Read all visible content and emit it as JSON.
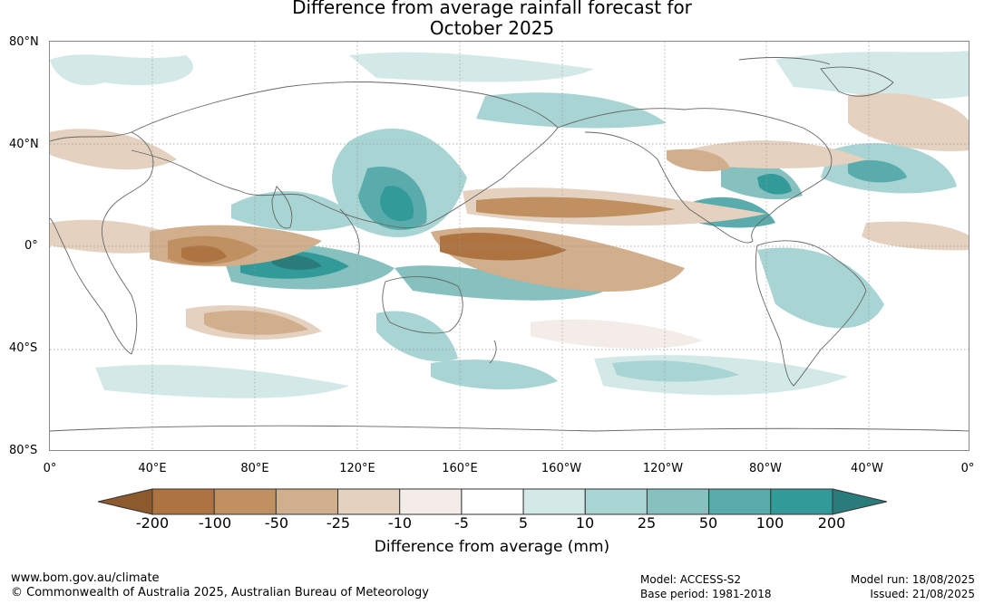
{
  "title": {
    "line1": "Difference from average rainfall forecast for",
    "line2": "October 2025"
  },
  "map": {
    "lat_labels": [
      "80°N",
      "40°N",
      "0°",
      "40°S",
      "80°S"
    ],
    "lon_labels": [
      "0°",
      "40°E",
      "80°E",
      "120°E",
      "160°E",
      "160°W",
      "120°W",
      "80°W",
      "40°W",
      "0°"
    ],
    "grid": "dotted"
  },
  "colorbar": {
    "tick_labels": [
      "-200",
      "-100",
      "-50",
      "-25",
      "-10",
      "-5",
      "5",
      "10",
      "25",
      "50",
      "100",
      "200"
    ],
    "colors": [
      "#8c5a2c",
      "#ad7441",
      "#c09060",
      "#d1ae8c",
      "#e5d1bf",
      "#f3ece8",
      "#ffffff",
      "#d3e9e8",
      "#a8d4d3",
      "#86c1c0",
      "#5aabac",
      "#329a98",
      "#2a7c7b"
    ],
    "label": "Difference from average (mm)"
  },
  "footer": {
    "website": "www.bom.gov.au/climate",
    "copyright": "© Commonwealth of Australia 2025, Australian Bureau of Meteorology",
    "model": "Model: ACCESS-S2",
    "base_period": "Base period: 1981-2018",
    "model_run": "Model run: 18/08/2025",
    "issued": "Issued: 21/08/2025"
  }
}
